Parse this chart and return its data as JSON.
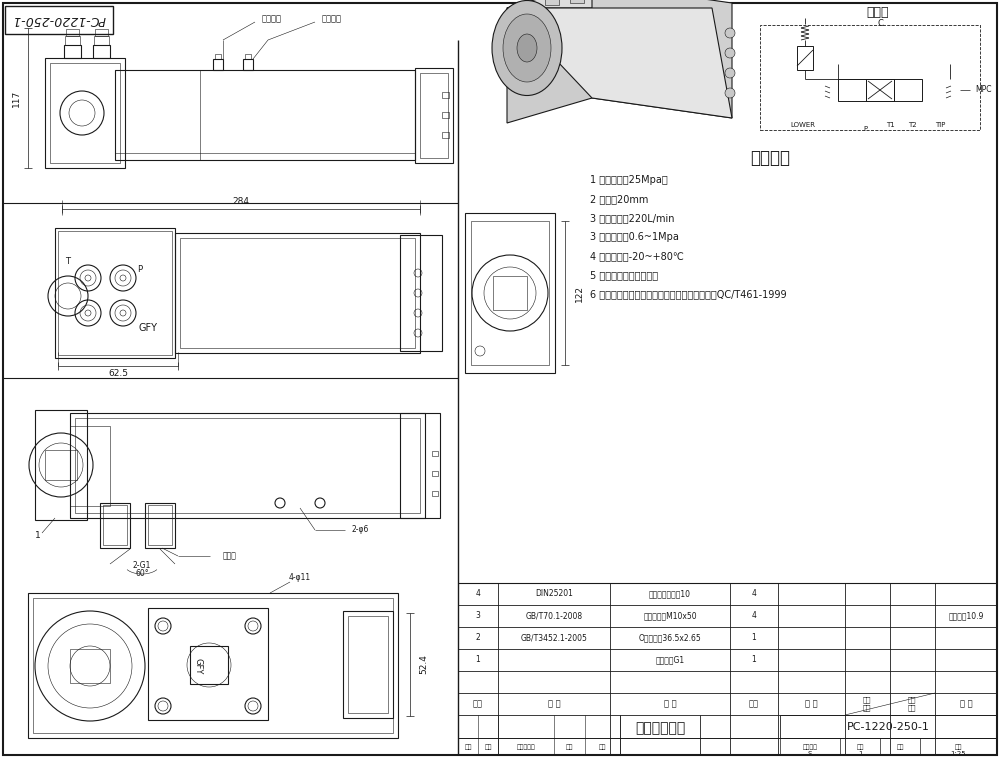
{
  "bg_color": "#ffffff",
  "line_color": "#1a1a1a",
  "params_title": "主要参数",
  "params": [
    "1 溢流压力：25Mpa，",
    "2 通径：20mm",
    "3 额定流量：220L/min",
    "3 控制气压：0.6~1Mpa",
    "4 工作油温：-20~+80℃",
    "5 工作介质：抗磨液压油",
    "6 产品执行标准：《自卸汽车换向阀技术条件》QC/T461-1999"
  ],
  "schematic_title": "原理图",
  "bom_rows": [
    [
      "4",
      "DIN25201",
      "双面齿防松螫垈10",
      "4",
      "",
      "",
      "",
      ""
    ],
    [
      "3",
      "GB/T70.1-2008",
      "内六角螺栌M10x50",
      "4",
      "",
      "",
      "",
      "强度等级10.9"
    ],
    [
      "2",
      "GB/T3452.1-2005",
      "O型密封剨36.5x2.65",
      "1",
      "",
      "",
      "",
      ""
    ],
    [
      "1",
      "",
      "直通接头G1",
      "1",
      "",
      "",
      "",
      ""
    ]
  ],
  "bom_header": [
    "序号",
    "代 号",
    "名 称",
    "数量",
    "材 料",
    "单件\n重量",
    "总计\n重量",
    "备 注"
  ],
  "title_block_drawing": "防爆阀外形图",
  "title_block_code": "PC-1220-250-1",
  "dim_117": "117",
  "dim_284": "284",
  "dim_625": "62.5",
  "dim_122": "122",
  "dim_524": "52.4",
  "dim_2g1": "2-G1",
  "dim_60": "60°",
  "dim_2phi6": "2-φ6",
  "dim_4phi11": "4-φ11",
  "label_xia": "下降气口",
  "label_sheng": "上升气口",
  "label_danjian": "单向阀",
  "label_lower": "LOWER",
  "label_p": "P",
  "label_t1": "T1",
  "label_t2": "T2",
  "label_tip": "TIP",
  "label_mpc": "MPC",
  "label_c": "C",
  "label_gfy": "GFY",
  "port_t": "T",
  "port_p": "P",
  "title_label": "PC-1220-250-1",
  "bom_header_row": [
    "序号",
    "代 号",
    "名 称",
    "数量",
    "材 料",
    "单件重量",
    "总计重量",
    "备 注"
  ],
  "tb_biaozhun": "标记",
  "tb_chushu": "处数",
  "tb_gaiwen": "更改文件号",
  "tb_qianzi": "签字",
  "tb_riqi": "日期",
  "tb_tuyangbiaoji": "图样标记",
  "tb_shuliang": "数量",
  "tb_zhongliang": "重量",
  "tb_bili": "比例",
  "tb_S": "S",
  "tb_1": "1",
  "tb_125": "1:25"
}
